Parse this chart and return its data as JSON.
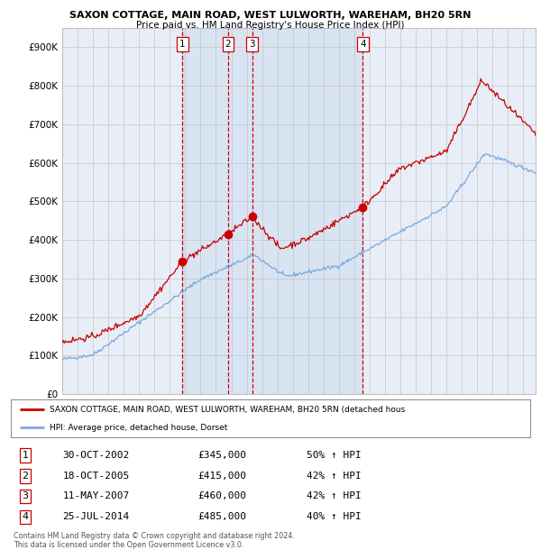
{
  "title1": "SAXON COTTAGE, MAIN ROAD, WEST LULWORTH, WAREHAM, BH20 5RN",
  "title2": "Price paid vs. HM Land Registry's House Price Index (HPI)",
  "legend_red": "SAXON COTTAGE, MAIN ROAD, WEST LULWORTH, WAREHAM, BH20 5RN (detached hous",
  "legend_blue": "HPI: Average price, detached house, Dorset",
  "footer1": "Contains HM Land Registry data © Crown copyright and database right 2024.",
  "footer2": "This data is licensed under the Open Government Licence v3.0.",
  "transactions": [
    {
      "num": 1,
      "date": "30-OCT-2002",
      "price": "£345,000",
      "hpi": "50% ↑ HPI",
      "year": 2002.83
    },
    {
      "num": 2,
      "date": "18-OCT-2005",
      "price": "£415,000",
      "hpi": "42% ↑ HPI",
      "year": 2005.79
    },
    {
      "num": 3,
      "date": "11-MAY-2007",
      "price": "£460,000",
      "hpi": "42% ↑ HPI",
      "year": 2007.36
    },
    {
      "num": 4,
      "date": "25-JUL-2014",
      "price": "£485,000",
      "hpi": "40% ↑ HPI",
      "year": 2014.56
    }
  ],
  "transaction_prices": [
    345000,
    415000,
    460000,
    485000
  ],
  "background_color": "#ffffff",
  "plot_bg_color": "#e8eef8",
  "grid_color": "#cccccc",
  "red_color": "#cc0000",
  "blue_color": "#7aaadd",
  "ylim": [
    0,
    950000
  ],
  "yticks": [
    0,
    100000,
    200000,
    300000,
    400000,
    500000,
    600000,
    700000,
    800000,
    900000
  ],
  "xmin": 1995,
  "xmax": 2025.8
}
